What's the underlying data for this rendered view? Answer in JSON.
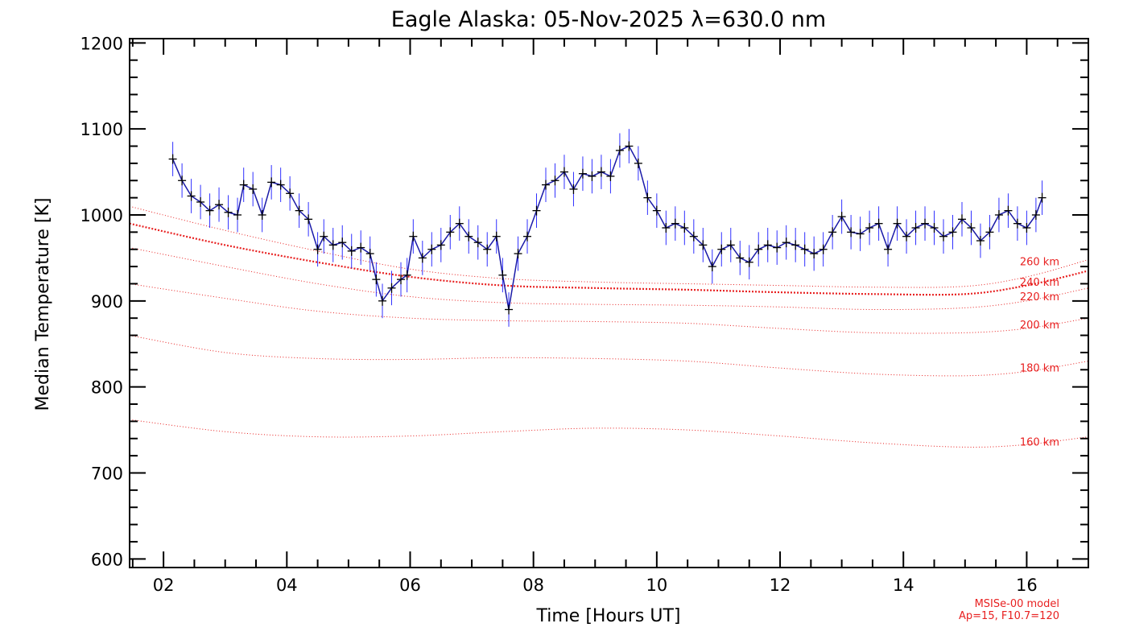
{
  "chart_data": {
    "type": "line",
    "title": "Eagle Alaska: 05-Nov-2025 λ=630.0 nm",
    "xlabel": "Time [Hours UT]",
    "ylabel": "Median Temperature [K]",
    "xlim": [
      1.45,
      17.0
    ],
    "ylim": [
      590,
      1205
    ],
    "x_tick_labels": [
      "02",
      "04",
      "06",
      "08",
      "10",
      "12",
      "14",
      "16"
    ],
    "x_tick_values": [
      2,
      4,
      6,
      8,
      10,
      12,
      14,
      16
    ],
    "y_tick_values": [
      600,
      700,
      800,
      900,
      1000,
      1100,
      1200
    ],
    "y_tick_labels": [
      "600",
      "700",
      "800",
      "900",
      "1000",
      "1100",
      "1200"
    ],
    "colors": {
      "data": "#1a1aa8",
      "error": "#3030ff",
      "model": "#e82020",
      "axis": "#000000"
    },
    "series": [
      {
        "name": "Median Temperature",
        "x": [
          2.15,
          2.3,
          2.45,
          2.6,
          2.75,
          2.9,
          3.05,
          3.2,
          3.3,
          3.45,
          3.6,
          3.75,
          3.9,
          4.05,
          4.2,
          4.35,
          4.5,
          4.6,
          4.75,
          4.9,
          5.05,
          5.2,
          5.35,
          5.45,
          5.55,
          5.7,
          5.85,
          5.95,
          6.05,
          6.2,
          6.35,
          6.5,
          6.65,
          6.8,
          6.95,
          7.1,
          7.25,
          7.4,
          7.5,
          7.6,
          7.75,
          7.9,
          8.05,
          8.2,
          8.35,
          8.5,
          8.65,
          8.8,
          8.95,
          9.1,
          9.25,
          9.4,
          9.55,
          9.7,
          9.85,
          10.0,
          10.15,
          10.3,
          10.45,
          10.6,
          10.75,
          10.9,
          11.05,
          11.2,
          11.35,
          11.5,
          11.65,
          11.8,
          11.95,
          12.1,
          12.25,
          12.4,
          12.55,
          12.7,
          12.85,
          13.0,
          13.15,
          13.3,
          13.45,
          13.6,
          13.75,
          13.9,
          14.05,
          14.2,
          14.35,
          14.5,
          14.65,
          14.8,
          14.95,
          15.1,
          15.25,
          15.4,
          15.55,
          15.7,
          15.85,
          16.0,
          16.15,
          16.25
        ],
        "y": [
          1065,
          1040,
          1022,
          1015,
          1005,
          1012,
          1003,
          1000,
          1035,
          1030,
          1000,
          1038,
          1035,
          1025,
          1005,
          995,
          960,
          975,
          965,
          968,
          958,
          962,
          955,
          925,
          900,
          915,
          925,
          930,
          975,
          950,
          960,
          965,
          980,
          990,
          975,
          968,
          960,
          975,
          930,
          890,
          955,
          975,
          1005,
          1035,
          1040,
          1050,
          1030,
          1048,
          1045,
          1050,
          1045,
          1075,
          1080,
          1060,
          1020,
          1005,
          985,
          990,
          985,
          975,
          965,
          940,
          960,
          965,
          950,
          945,
          960,
          965,
          962,
          968,
          965,
          960,
          955,
          960,
          980,
          998,
          980,
          978,
          985,
          990,
          960,
          990,
          975,
          985,
          990,
          985,
          975,
          980,
          995,
          985,
          970,
          980,
          1000,
          1005,
          990,
          985,
          1000,
          1020
        ],
        "error_bar": 20
      }
    ],
    "model_curves": [
      {
        "label": "160 km",
        "x": [
          1.45,
          3.0,
          4.5,
          6.0,
          7.5,
          9.0,
          10.5,
          12.0,
          13.5,
          15.0,
          16.0,
          17.0
        ],
        "y": [
          762,
          748,
          742,
          743,
          748,
          752,
          750,
          743,
          735,
          730,
          733,
          742
        ]
      },
      {
        "label": "180 km",
        "x": [
          1.45,
          3.0,
          4.5,
          6.0,
          7.5,
          9.0,
          10.5,
          12.0,
          13.5,
          15.0,
          16.0,
          17.0
        ],
        "y": [
          860,
          840,
          833,
          832,
          834,
          833,
          830,
          822,
          815,
          813,
          818,
          830
        ]
      },
      {
        "label": "200 km",
        "x": [
          1.45,
          3.0,
          4.5,
          6.0,
          7.5,
          9.0,
          10.5,
          12.0,
          13.5,
          15.0,
          16.0,
          17.0
        ],
        "y": [
          920,
          903,
          888,
          880,
          877,
          876,
          874,
          868,
          863,
          863,
          868,
          880
        ]
      },
      {
        "label": "220 km",
        "x": [
          1.45,
          3.0,
          4.5,
          6.0,
          7.5,
          9.0,
          10.5,
          12.0,
          13.5,
          15.0,
          16.0,
          17.0
        ],
        "y": [
          962,
          940,
          920,
          905,
          898,
          896,
          895,
          893,
          890,
          892,
          900,
          915
        ]
      },
      {
        "label": "240 km",
        "x": [
          1.45,
          3.0,
          4.5,
          6.0,
          7.5,
          9.0,
          10.5,
          12.0,
          13.5,
          15.0,
          16.0,
          17.0
        ],
        "y": [
          990,
          965,
          945,
          928,
          918,
          915,
          913,
          910,
          908,
          908,
          918,
          935
        ]
      },
      {
        "label": "260 km",
        "x": [
          1.45,
          3.0,
          4.5,
          6.0,
          7.5,
          9.0,
          10.5,
          12.0,
          13.5,
          15.0,
          16.0,
          17.0
        ],
        "y": [
          1010,
          982,
          958,
          937,
          926,
          922,
          920,
          918,
          916,
          917,
          928,
          948
        ]
      }
    ],
    "model_info": [
      "MSISe-00 model",
      "Ap=15, F10.7=120"
    ]
  }
}
